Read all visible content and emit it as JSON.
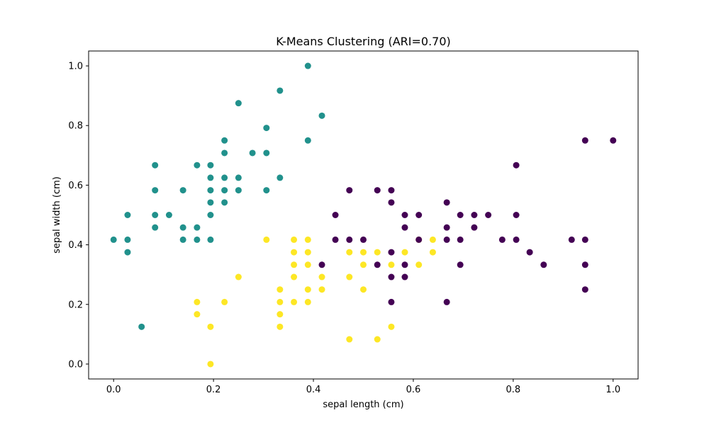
{
  "chart_data": {
    "type": "scatter",
    "title": "K-Means Clustering (ARI=0.70)",
    "xlabel": "sepal length (cm)",
    "ylabel": "sepal width (cm)",
    "xlim": [
      -0.05,
      1.05
    ],
    "ylim": [
      -0.05,
      1.05
    ],
    "xticks": [
      "0.0",
      "0.2",
      "0.4",
      "0.6",
      "0.8",
      "1.0"
    ],
    "yticks": [
      "0.0",
      "0.2",
      "0.4",
      "0.6",
      "0.8",
      "1.0"
    ],
    "grid": false,
    "series": [
      {
        "color": "#21918c",
        "points": [
          [
            0.0,
            0.417
          ],
          [
            0.028,
            0.5
          ],
          [
            0.028,
            0.417
          ],
          [
            0.028,
            0.375
          ],
          [
            0.056,
            0.125
          ],
          [
            0.083,
            0.667
          ],
          [
            0.083,
            0.583
          ],
          [
            0.083,
            0.5
          ],
          [
            0.083,
            0.458
          ],
          [
            0.111,
            0.5
          ],
          [
            0.139,
            0.583
          ],
          [
            0.139,
            0.458
          ],
          [
            0.139,
            0.417
          ],
          [
            0.167,
            0.667
          ],
          [
            0.167,
            0.458
          ],
          [
            0.167,
            0.417
          ],
          [
            0.194,
            0.667
          ],
          [
            0.194,
            0.625
          ],
          [
            0.194,
            0.583
          ],
          [
            0.194,
            0.542
          ],
          [
            0.194,
            0.5
          ],
          [
            0.194,
            0.417
          ],
          [
            0.222,
            0.75
          ],
          [
            0.222,
            0.708
          ],
          [
            0.222,
            0.625
          ],
          [
            0.222,
            0.583
          ],
          [
            0.222,
            0.542
          ],
          [
            0.25,
            0.875
          ],
          [
            0.25,
            0.625
          ],
          [
            0.25,
            0.583
          ],
          [
            0.278,
            0.708
          ],
          [
            0.306,
            0.792
          ],
          [
            0.306,
            0.708
          ],
          [
            0.306,
            0.583
          ],
          [
            0.333,
            0.917
          ],
          [
            0.333,
            0.625
          ],
          [
            0.389,
            1.0
          ],
          [
            0.389,
            0.75
          ],
          [
            0.417,
            0.833
          ]
        ]
      },
      {
        "color": "#fde725",
        "points": [
          [
            0.167,
            0.208
          ],
          [
            0.167,
            0.167
          ],
          [
            0.194,
            0.125
          ],
          [
            0.194,
            0.0
          ],
          [
            0.222,
            0.208
          ],
          [
            0.25,
            0.292
          ],
          [
            0.306,
            0.417
          ],
          [
            0.333,
            0.25
          ],
          [
            0.333,
            0.208
          ],
          [
            0.333,
            0.167
          ],
          [
            0.333,
            0.125
          ],
          [
            0.361,
            0.417
          ],
          [
            0.361,
            0.375
          ],
          [
            0.361,
            0.333
          ],
          [
            0.361,
            0.292
          ],
          [
            0.361,
            0.208
          ],
          [
            0.389,
            0.417
          ],
          [
            0.389,
            0.375
          ],
          [
            0.389,
            0.333
          ],
          [
            0.389,
            0.25
          ],
          [
            0.389,
            0.208
          ],
          [
            0.417,
            0.292
          ],
          [
            0.417,
            0.25
          ],
          [
            0.472,
            0.375
          ],
          [
            0.472,
            0.292
          ],
          [
            0.472,
            0.083
          ],
          [
            0.5,
            0.375
          ],
          [
            0.5,
            0.333
          ],
          [
            0.5,
            0.25
          ],
          [
            0.528,
            0.375
          ],
          [
            0.528,
            0.083
          ],
          [
            0.556,
            0.333
          ],
          [
            0.556,
            0.125
          ],
          [
            0.583,
            0.375
          ],
          [
            0.611,
            0.333
          ],
          [
            0.611,
            0.417
          ],
          [
            0.639,
            0.417
          ],
          [
            0.639,
            0.375
          ]
        ]
      },
      {
        "color": "#440154",
        "points": [
          [
            0.417,
            0.333
          ],
          [
            0.444,
            0.5
          ],
          [
            0.444,
            0.417
          ],
          [
            0.472,
            0.583
          ],
          [
            0.472,
            0.417
          ],
          [
            0.5,
            0.417
          ],
          [
            0.528,
            0.583
          ],
          [
            0.528,
            0.333
          ],
          [
            0.556,
            0.583
          ],
          [
            0.556,
            0.542
          ],
          [
            0.556,
            0.375
          ],
          [
            0.556,
            0.292
          ],
          [
            0.556,
            0.208
          ],
          [
            0.583,
            0.5
          ],
          [
            0.583,
            0.458
          ],
          [
            0.583,
            0.333
          ],
          [
            0.583,
            0.292
          ],
          [
            0.611,
            0.5
          ],
          [
            0.611,
            0.417
          ],
          [
            0.667,
            0.542
          ],
          [
            0.667,
            0.458
          ],
          [
            0.667,
            0.417
          ],
          [
            0.667,
            0.208
          ],
          [
            0.694,
            0.5
          ],
          [
            0.694,
            0.417
          ],
          [
            0.694,
            0.333
          ],
          [
            0.722,
            0.5
          ],
          [
            0.722,
            0.458
          ],
          [
            0.75,
            0.5
          ],
          [
            0.778,
            0.417
          ],
          [
            0.806,
            0.667
          ],
          [
            0.806,
            0.5
          ],
          [
            0.806,
            0.417
          ],
          [
            0.833,
            0.375
          ],
          [
            0.861,
            0.333
          ],
          [
            0.917,
            0.417
          ],
          [
            0.944,
            0.75
          ],
          [
            0.944,
            0.417
          ],
          [
            0.944,
            0.333
          ],
          [
            0.944,
            0.25
          ],
          [
            1.0,
            0.75
          ]
        ]
      }
    ]
  }
}
